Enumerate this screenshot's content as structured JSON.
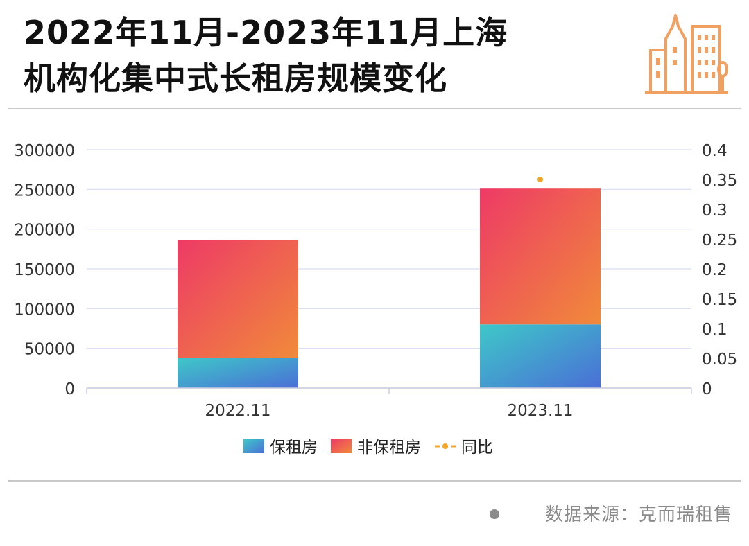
{
  "title": "2022年11月-2023年11月上海\n机构化集中式长租房规模变化",
  "source": "数据来源：克而瑞租售",
  "icon": "building-icon",
  "colors": {
    "accent": "#f0a060",
    "gridline": "#d7dcf0",
    "line_series": "#f5a623"
  },
  "chart_data": {
    "type": "bar",
    "stacked": true,
    "categories": [
      "2022.11",
      "2023.11"
    ],
    "series": [
      {
        "name": "保租房",
        "values": [
          38000,
          80000
        ],
        "axis": "left",
        "gradient": [
          "#3ec8c8",
          "#4a6fd6"
        ]
      },
      {
        "name": "非保租房",
        "values": [
          148000,
          171000
        ],
        "axis": "left",
        "gradient": [
          "#ee3a66",
          "#f08a3a"
        ]
      },
      {
        "name": "同比",
        "type": "line",
        "values": [
          null,
          0.35
        ],
        "axis": "right",
        "color": "#f5a623"
      }
    ],
    "ylim": [
      0,
      300000
    ],
    "y_ticks": [
      "300000",
      "250000",
      "200000",
      "150000",
      "100000",
      "50000",
      "0"
    ],
    "y2lim": [
      0,
      0.4
    ],
    "y2_ticks": [
      "0.4",
      "0.35",
      "0.3",
      "0.25",
      "0.2",
      "0.15",
      "0.1",
      "0.05",
      "0"
    ],
    "grid": true,
    "legend_position": "bottom-center"
  }
}
